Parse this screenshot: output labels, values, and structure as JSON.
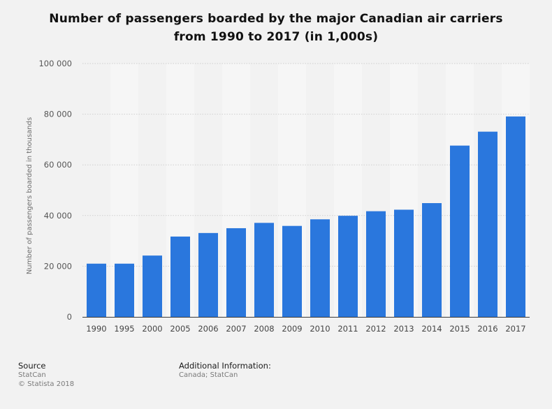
{
  "chart_data": {
    "type": "bar",
    "title_line1": "Number of passengers boarded by the major Canadian air carriers",
    "title_line2": "from 1990 to 2017 (in 1,000s)",
    "xlabel": "",
    "ylabel": "Number of passengers boarded in thousands",
    "ylim": [
      0,
      100000
    ],
    "yticks": [
      0,
      20000,
      40000,
      60000,
      80000,
      100000
    ],
    "ytick_labels": [
      "0",
      "20 000",
      "40 000",
      "60 000",
      "80 000",
      "100 000"
    ],
    "categories": [
      "1990",
      "1995",
      "2000",
      "2005",
      "2006",
      "2007",
      "2008",
      "2009",
      "2010",
      "2011",
      "2012",
      "2013",
      "2014",
      "2015",
      "2016",
      "2017"
    ],
    "values": [
      21000,
      21000,
      24200,
      31700,
      33100,
      35000,
      37100,
      35900,
      38500,
      39900,
      41700,
      42300,
      44900,
      67600,
      73100,
      79100
    ],
    "bar_color": "#2a77dd",
    "grid": true
  },
  "footer": {
    "source_label": "Source",
    "source_line1": "StatCan",
    "source_line2": "© Statista 2018",
    "info_label": "Additional Information:",
    "info_line1": "Canada; StatCan"
  }
}
